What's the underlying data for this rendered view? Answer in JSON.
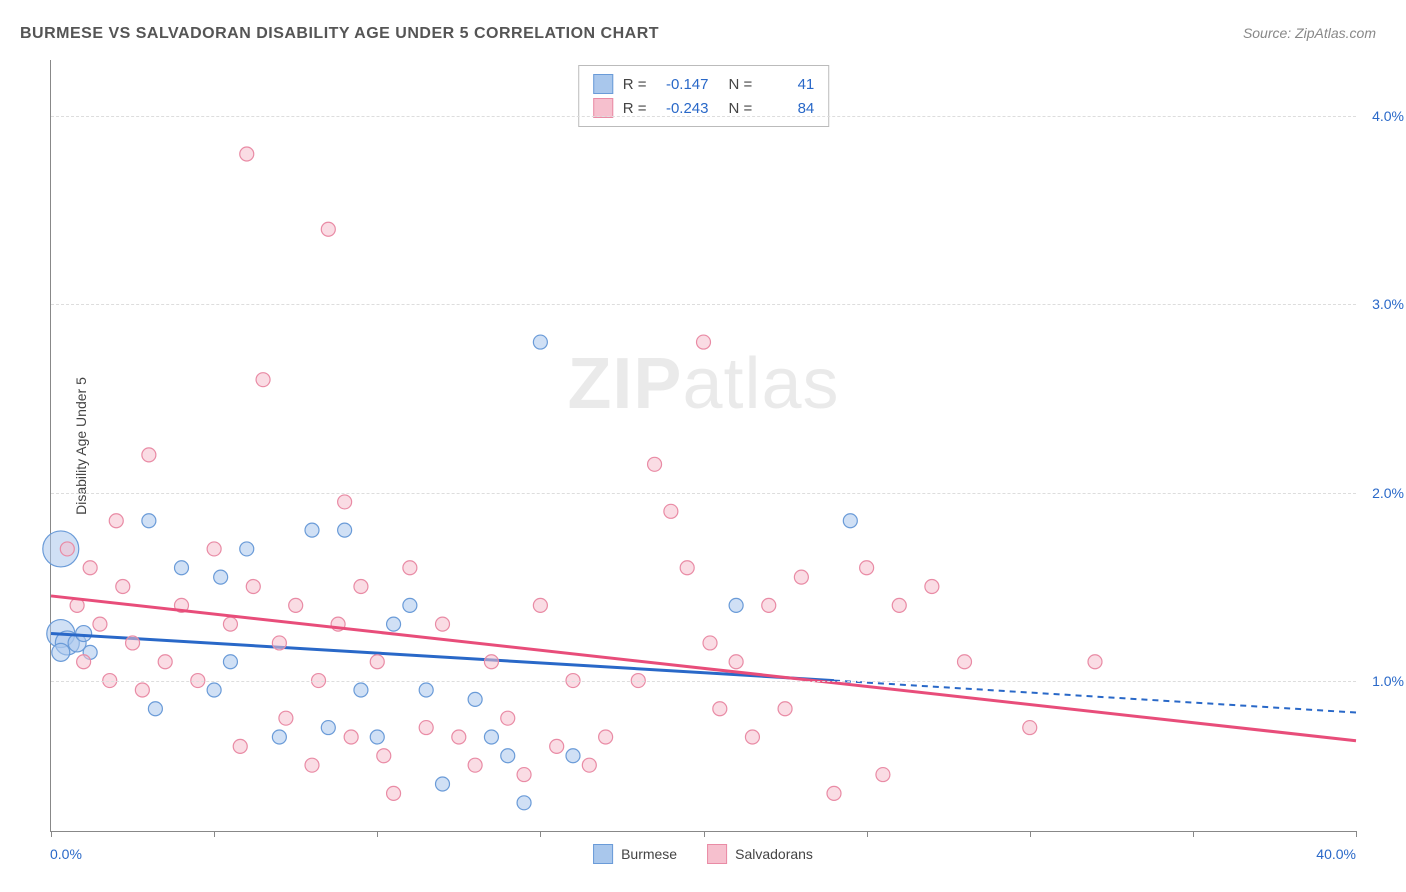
{
  "title": "BURMESE VS SALVADORAN DISABILITY AGE UNDER 5 CORRELATION CHART",
  "source_label": "Source: ",
  "source_name": "ZipAtlas.com",
  "ylabel": "Disability Age Under 5",
  "watermark_a": "ZIP",
  "watermark_b": "atlas",
  "chart": {
    "type": "scatter",
    "xlim": [
      0,
      40
    ],
    "ylim": [
      0.2,
      4.3
    ],
    "xticks": [
      0,
      5,
      10,
      15,
      20,
      25,
      30,
      35,
      40
    ],
    "yticks": [
      1.0,
      2.0,
      3.0,
      4.0
    ],
    "ytick_labels": [
      "1.0%",
      "2.0%",
      "3.0%",
      "4.0%"
    ],
    "xmin_label": "0.0%",
    "xmax_label": "40.0%",
    "grid_color": "#dddddd",
    "background": "#ffffff",
    "series": [
      {
        "name": "Burmese",
        "fill": "#a9c7ec",
        "stroke": "#6a9bd8",
        "line_color": "#2968c8",
        "R": "-0.147",
        "N": "41",
        "trend": {
          "x1": 0,
          "y1": 1.25,
          "x2": 24,
          "y2": 1.0,
          "dash_x2": 40,
          "dash_y2": 0.83
        },
        "points": [
          {
            "x": 0.3,
            "y": 1.7,
            "r": 18
          },
          {
            "x": 0.3,
            "y": 1.25,
            "r": 14
          },
          {
            "x": 0.5,
            "y": 1.2,
            "r": 12
          },
          {
            "x": 0.3,
            "y": 1.15,
            "r": 9
          },
          {
            "x": 0.8,
            "y": 1.2,
            "r": 9
          },
          {
            "x": 1.0,
            "y": 1.25,
            "r": 8
          },
          {
            "x": 1.2,
            "y": 1.15,
            "r": 7
          },
          {
            "x": 3.0,
            "y": 1.85,
            "r": 7
          },
          {
            "x": 3.2,
            "y": 0.85,
            "r": 7
          },
          {
            "x": 4.0,
            "y": 1.6,
            "r": 7
          },
          {
            "x": 5.0,
            "y": 0.95,
            "r": 7
          },
          {
            "x": 5.2,
            "y": 1.55,
            "r": 7
          },
          {
            "x": 5.5,
            "y": 1.1,
            "r": 7
          },
          {
            "x": 6.0,
            "y": 1.7,
            "r": 7
          },
          {
            "x": 7.0,
            "y": 0.7,
            "r": 7
          },
          {
            "x": 8.0,
            "y": 1.8,
            "r": 7
          },
          {
            "x": 8.5,
            "y": 0.75,
            "r": 7
          },
          {
            "x": 9.0,
            "y": 1.8,
            "r": 7
          },
          {
            "x": 9.5,
            "y": 0.95,
            "r": 7
          },
          {
            "x": 10.0,
            "y": 0.7,
            "r": 7
          },
          {
            "x": 10.5,
            "y": 1.3,
            "r": 7
          },
          {
            "x": 11.0,
            "y": 1.4,
            "r": 7
          },
          {
            "x": 11.5,
            "y": 0.95,
            "r": 7
          },
          {
            "x": 12.0,
            "y": 0.45,
            "r": 7
          },
          {
            "x": 13.0,
            "y": 0.9,
            "r": 7
          },
          {
            "x": 13.5,
            "y": 0.7,
            "r": 7
          },
          {
            "x": 14.0,
            "y": 0.6,
            "r": 7
          },
          {
            "x": 14.5,
            "y": 0.35,
            "r": 7
          },
          {
            "x": 15.0,
            "y": 2.8,
            "r": 7
          },
          {
            "x": 16.0,
            "y": 0.6,
            "r": 7
          },
          {
            "x": 21.0,
            "y": 1.4,
            "r": 7
          },
          {
            "x": 24.5,
            "y": 1.85,
            "r": 7
          }
        ]
      },
      {
        "name": "Salvadorans",
        "fill": "#f6c0ce",
        "stroke": "#e98ba5",
        "line_color": "#e84d7a",
        "R": "-0.243",
        "N": "84",
        "trend": {
          "x1": 0,
          "y1": 1.45,
          "x2": 40,
          "y2": 0.68
        },
        "points": [
          {
            "x": 0.5,
            "y": 1.7,
            "r": 7
          },
          {
            "x": 0.8,
            "y": 1.4,
            "r": 7
          },
          {
            "x": 1.0,
            "y": 1.1,
            "r": 7
          },
          {
            "x": 1.2,
            "y": 1.6,
            "r": 7
          },
          {
            "x": 1.5,
            "y": 1.3,
            "r": 7
          },
          {
            "x": 1.8,
            "y": 1.0,
            "r": 7
          },
          {
            "x": 2.0,
            "y": 1.85,
            "r": 7
          },
          {
            "x": 2.2,
            "y": 1.5,
            "r": 7
          },
          {
            "x": 2.5,
            "y": 1.2,
            "r": 7
          },
          {
            "x": 2.8,
            "y": 0.95,
            "r": 7
          },
          {
            "x": 3.0,
            "y": 2.2,
            "r": 7
          },
          {
            "x": 3.5,
            "y": 1.1,
            "r": 7
          },
          {
            "x": 4.0,
            "y": 1.4,
            "r": 7
          },
          {
            "x": 4.5,
            "y": 1.0,
            "r": 7
          },
          {
            "x": 5.0,
            "y": 1.7,
            "r": 7
          },
          {
            "x": 5.5,
            "y": 1.3,
            "r": 7
          },
          {
            "x": 5.8,
            "y": 0.65,
            "r": 7
          },
          {
            "x": 6.0,
            "y": 3.8,
            "r": 7
          },
          {
            "x": 6.2,
            "y": 1.5,
            "r": 7
          },
          {
            "x": 6.5,
            "y": 2.6,
            "r": 7
          },
          {
            "x": 7.0,
            "y": 1.2,
            "r": 7
          },
          {
            "x": 7.2,
            "y": 0.8,
            "r": 7
          },
          {
            "x": 7.5,
            "y": 1.4,
            "r": 7
          },
          {
            "x": 8.0,
            "y": 0.55,
            "r": 7
          },
          {
            "x": 8.2,
            "y": 1.0,
            "r": 7
          },
          {
            "x": 8.5,
            "y": 3.4,
            "r": 7
          },
          {
            "x": 8.8,
            "y": 1.3,
            "r": 7
          },
          {
            "x": 9.0,
            "y": 1.95,
            "r": 7
          },
          {
            "x": 9.2,
            "y": 0.7,
            "r": 7
          },
          {
            "x": 9.5,
            "y": 1.5,
            "r": 7
          },
          {
            "x": 10.0,
            "y": 1.1,
            "r": 7
          },
          {
            "x": 10.2,
            "y": 0.6,
            "r": 7
          },
          {
            "x": 10.5,
            "y": 0.4,
            "r": 7
          },
          {
            "x": 11.0,
            "y": 1.6,
            "r": 7
          },
          {
            "x": 11.5,
            "y": 0.75,
            "r": 7
          },
          {
            "x": 12.0,
            "y": 1.3,
            "r": 7
          },
          {
            "x": 12.5,
            "y": 0.7,
            "r": 7
          },
          {
            "x": 13.0,
            "y": 0.55,
            "r": 7
          },
          {
            "x": 13.5,
            "y": 1.1,
            "r": 7
          },
          {
            "x": 14.0,
            "y": 0.8,
            "r": 7
          },
          {
            "x": 14.5,
            "y": 0.5,
            "r": 7
          },
          {
            "x": 15.0,
            "y": 1.4,
            "r": 7
          },
          {
            "x": 15.5,
            "y": 0.65,
            "r": 7
          },
          {
            "x": 16.0,
            "y": 1.0,
            "r": 7
          },
          {
            "x": 16.5,
            "y": 0.55,
            "r": 7
          },
          {
            "x": 17.0,
            "y": 0.7,
            "r": 7
          },
          {
            "x": 18.0,
            "y": 1.0,
            "r": 7
          },
          {
            "x": 18.5,
            "y": 2.15,
            "r": 7
          },
          {
            "x": 19.0,
            "y": 1.9,
            "r": 7
          },
          {
            "x": 19.5,
            "y": 1.6,
            "r": 7
          },
          {
            "x": 20.0,
            "y": 2.8,
            "r": 7
          },
          {
            "x": 20.2,
            "y": 1.2,
            "r": 7
          },
          {
            "x": 20.5,
            "y": 0.85,
            "r": 7
          },
          {
            "x": 21.0,
            "y": 1.1,
            "r": 7
          },
          {
            "x": 21.5,
            "y": 0.7,
            "r": 7
          },
          {
            "x": 22.0,
            "y": 1.4,
            "r": 7
          },
          {
            "x": 22.5,
            "y": 0.85,
            "r": 7
          },
          {
            "x": 23.0,
            "y": 1.55,
            "r": 7
          },
          {
            "x": 24.0,
            "y": 0.4,
            "r": 7
          },
          {
            "x": 25.0,
            "y": 1.6,
            "r": 7
          },
          {
            "x": 25.5,
            "y": 0.5,
            "r": 7
          },
          {
            "x": 26.0,
            "y": 1.4,
            "r": 7
          },
          {
            "x": 27.0,
            "y": 1.5,
            "r": 7
          },
          {
            "x": 28.0,
            "y": 1.1,
            "r": 7
          },
          {
            "x": 30.0,
            "y": 0.75,
            "r": 7
          },
          {
            "x": 32.0,
            "y": 1.1,
            "r": 7
          }
        ]
      }
    ]
  },
  "legend_bottom": [
    {
      "label": "Burmese",
      "fill": "#a9c7ec",
      "stroke": "#6a9bd8"
    },
    {
      "label": "Salvadorans",
      "fill": "#f6c0ce",
      "stroke": "#e98ba5"
    }
  ],
  "stats_labels": {
    "R": "R =",
    "N": "N ="
  }
}
